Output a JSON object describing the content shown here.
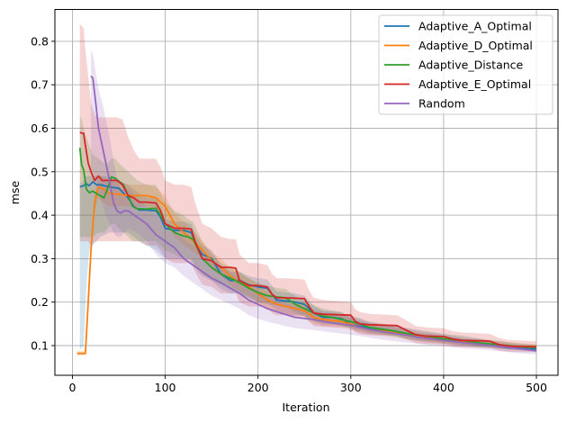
{
  "chart_data": {
    "type": "line",
    "title": "",
    "xlabel": "Iteration",
    "ylabel": "mse",
    "xlim": [
      -18,
      522
    ],
    "ylim": [
      0.032,
      0.884
    ],
    "xticks": [
      0,
      100,
      200,
      300,
      400,
      500
    ],
    "xtick_labels": [
      "0",
      "100",
      "200",
      "300",
      "400",
      "500"
    ],
    "yticks": [
      0.1,
      0.2,
      0.3,
      0.4,
      0.5,
      0.6,
      0.7,
      0.8
    ],
    "ytick_labels": [
      "0.1",
      "0.2",
      "0.3",
      "0.4",
      "0.5",
      "0.6",
      "0.7",
      "0.8"
    ],
    "grid": true,
    "legend_position": "upper right",
    "series": [
      {
        "name": "Adaptive_A_Optimal",
        "color": "#1f77b4",
        "x": [
          8,
          12,
          15,
          18,
          22,
          26,
          30,
          40,
          50,
          60,
          66,
          72,
          80,
          90,
          95,
          100,
          110,
          120,
          128,
          135,
          140,
          150,
          160,
          170,
          180,
          190,
          200,
          210,
          220,
          240,
          250,
          260,
          270,
          280,
          290,
          300,
          310,
          320,
          340,
          350,
          360,
          370,
          390,
          400,
          410,
          420,
          440,
          450,
          460,
          470,
          480,
          500
        ],
        "y": [
          0.465,
          0.468,
          0.472,
          0.468,
          0.477,
          0.47,
          0.47,
          0.465,
          0.462,
          0.44,
          0.42,
          0.412,
          0.412,
          0.41,
          0.395,
          0.37,
          0.365,
          0.365,
          0.36,
          0.325,
          0.31,
          0.3,
          0.265,
          0.25,
          0.25,
          0.24,
          0.235,
          0.232,
          0.205,
          0.2,
          0.195,
          0.175,
          0.165,
          0.165,
          0.162,
          0.15,
          0.145,
          0.14,
          0.135,
          0.132,
          0.128,
          0.12,
          0.118,
          0.115,
          0.112,
          0.108,
          0.104,
          0.102,
          0.098,
          0.095,
          0.094,
          0.092
        ],
        "band_lower": [
          0.09,
          0.1,
          0.24,
          0.32,
          0.33,
          0.34,
          0.35,
          0.36,
          0.36,
          0.36,
          0.35,
          0.34,
          0.33,
          0.32,
          0.31,
          0.3,
          0.3,
          0.3,
          0.3,
          0.27,
          0.26,
          0.25,
          0.23,
          0.22,
          0.22,
          0.21,
          0.2,
          0.2,
          0.18,
          0.17,
          0.17,
          0.155,
          0.148,
          0.148,
          0.146,
          0.138,
          0.133,
          0.128,
          0.124,
          0.122,
          0.118,
          0.112,
          0.11,
          0.107,
          0.104,
          0.1,
          0.097,
          0.096,
          0.093,
          0.09,
          0.089,
          0.087
        ],
        "band_upper": [
          0.47,
          0.48,
          0.49,
          0.49,
          0.49,
          0.49,
          0.49,
          0.49,
          0.48,
          0.47,
          0.46,
          0.45,
          0.44,
          0.44,
          0.42,
          0.39,
          0.385,
          0.385,
          0.38,
          0.345,
          0.33,
          0.32,
          0.285,
          0.27,
          0.27,
          0.26,
          0.255,
          0.252,
          0.225,
          0.22,
          0.215,
          0.192,
          0.18,
          0.18,
          0.178,
          0.163,
          0.157,
          0.152,
          0.146,
          0.142,
          0.138,
          0.128,
          0.126,
          0.123,
          0.12,
          0.116,
          0.111,
          0.108,
          0.103,
          0.1,
          0.099,
          0.097
        ]
      },
      {
        "name": "Adaptive_D_Optimal",
        "color": "#ff7f0e",
        "x": [
          5,
          8,
          10,
          14,
          17,
          20,
          24,
          28,
          32,
          40,
          50,
          60,
          70,
          80,
          90,
          100,
          110,
          120,
          128,
          140,
          150,
          160,
          170,
          180,
          190,
          200,
          210,
          220,
          240,
          250,
          260,
          270,
          290,
          300,
          310,
          320,
          340,
          360,
          380,
          400,
          420,
          440,
          460,
          480,
          500
        ],
        "y": [
          0.082,
          0.082,
          0.082,
          0.082,
          0.2,
          0.32,
          0.43,
          0.465,
          0.462,
          0.45,
          0.448,
          0.445,
          0.445,
          0.445,
          0.44,
          0.42,
          0.38,
          0.36,
          0.345,
          0.32,
          0.295,
          0.28,
          0.26,
          0.245,
          0.235,
          0.22,
          0.205,
          0.195,
          0.185,
          0.18,
          0.165,
          0.16,
          0.155,
          0.15,
          0.142,
          0.137,
          0.132,
          0.125,
          0.118,
          0.112,
          0.108,
          0.105,
          0.102,
          0.098,
          0.095
        ],
        "band_lower": [
          0.077,
          0.077,
          0.077,
          0.077,
          0.18,
          0.3,
          0.41,
          0.44,
          0.43,
          0.42,
          0.42,
          0.42,
          0.42,
          0.42,
          0.41,
          0.39,
          0.35,
          0.33,
          0.32,
          0.3,
          0.275,
          0.26,
          0.24,
          0.225,
          0.215,
          0.2,
          0.186,
          0.176,
          0.167,
          0.162,
          0.15,
          0.145,
          0.14,
          0.136,
          0.13,
          0.125,
          0.12,
          0.114,
          0.108,
          0.104,
          0.1,
          0.097,
          0.094,
          0.091,
          0.088
        ],
        "band_upper": [
          0.088,
          0.088,
          0.088,
          0.088,
          0.22,
          0.34,
          0.45,
          0.49,
          0.49,
          0.48,
          0.475,
          0.47,
          0.47,
          0.47,
          0.465,
          0.445,
          0.405,
          0.385,
          0.37,
          0.34,
          0.315,
          0.3,
          0.28,
          0.265,
          0.255,
          0.24,
          0.224,
          0.214,
          0.203,
          0.198,
          0.18,
          0.175,
          0.17,
          0.164,
          0.154,
          0.149,
          0.144,
          0.136,
          0.128,
          0.12,
          0.116,
          0.113,
          0.11,
          0.105,
          0.102
        ]
      },
      {
        "name": "Adaptive_Distance",
        "color": "#2ca02c",
        "x": [
          8,
          10,
          12,
          15,
          18,
          22,
          28,
          34,
          38,
          42,
          46,
          50,
          55,
          60,
          65,
          70,
          80,
          90,
          95,
          100,
          110,
          120,
          125,
          130,
          140,
          150,
          160,
          170,
          180,
          190,
          200,
          210,
          220,
          230,
          240,
          250,
          260,
          270,
          280,
          290,
          300,
          310,
          320,
          340,
          350,
          360,
          380,
          400,
          420,
          440,
          460,
          480,
          500
        ],
        "y": [
          0.555,
          0.515,
          0.505,
          0.46,
          0.452,
          0.455,
          0.447,
          0.44,
          0.462,
          0.488,
          0.485,
          0.478,
          0.47,
          0.445,
          0.42,
          0.415,
          0.414,
          0.416,
          0.4,
          0.38,
          0.36,
          0.352,
          0.35,
          0.345,
          0.3,
          0.28,
          0.265,
          0.255,
          0.245,
          0.232,
          0.222,
          0.215,
          0.212,
          0.21,
          0.195,
          0.185,
          0.175,
          0.168,
          0.165,
          0.16,
          0.155,
          0.15,
          0.142,
          0.136,
          0.132,
          0.128,
          0.122,
          0.116,
          0.112,
          0.106,
          0.102,
          0.098,
          0.095
        ],
        "band_lower": [
          0.35,
          0.35,
          0.35,
          0.35,
          0.35,
          0.35,
          0.36,
          0.36,
          0.37,
          0.38,
          0.38,
          0.37,
          0.36,
          0.35,
          0.34,
          0.34,
          0.34,
          0.34,
          0.33,
          0.32,
          0.31,
          0.3,
          0.3,
          0.29,
          0.265,
          0.25,
          0.24,
          0.23,
          0.22,
          0.21,
          0.2,
          0.195,
          0.192,
          0.19,
          0.176,
          0.167,
          0.157,
          0.152,
          0.15,
          0.145,
          0.141,
          0.137,
          0.13,
          0.124,
          0.12,
          0.116,
          0.11,
          0.105,
          0.101,
          0.096,
          0.093,
          0.09,
          0.088
        ],
        "band_upper": [
          0.63,
          0.62,
          0.6,
          0.58,
          0.56,
          0.54,
          0.53,
          0.52,
          0.52,
          0.53,
          0.53,
          0.52,
          0.51,
          0.5,
          0.49,
          0.48,
          0.47,
          0.47,
          0.45,
          0.43,
          0.41,
          0.4,
          0.39,
          0.385,
          0.34,
          0.31,
          0.29,
          0.28,
          0.27,
          0.255,
          0.245,
          0.237,
          0.233,
          0.23,
          0.214,
          0.203,
          0.193,
          0.185,
          0.18,
          0.175,
          0.169,
          0.163,
          0.154,
          0.148,
          0.144,
          0.14,
          0.134,
          0.127,
          0.123,
          0.116,
          0.111,
          0.106,
          0.102
        ]
      },
      {
        "name": "Adaptive_E_Optimal",
        "color": "#d62728",
        "x": [
          8,
          12,
          14,
          17,
          20,
          24,
          28,
          32,
          40,
          48,
          54,
          60,
          66,
          72,
          80,
          90,
          95,
          100,
          110,
          120,
          128,
          132,
          140,
          150,
          160,
          170,
          176,
          180,
          190,
          200,
          210,
          215,
          220,
          230,
          250,
          255,
          260,
          270,
          300,
          305,
          310,
          320,
          350,
          360,
          370,
          380,
          400,
          410,
          420,
          440,
          450,
          460,
          470,
          480,
          500
        ],
        "y": [
          0.59,
          0.588,
          0.56,
          0.52,
          0.5,
          0.48,
          0.49,
          0.48,
          0.48,
          0.48,
          0.47,
          0.445,
          0.44,
          0.43,
          0.43,
          0.428,
          0.41,
          0.38,
          0.37,
          0.37,
          0.368,
          0.34,
          0.3,
          0.295,
          0.28,
          0.28,
          0.278,
          0.25,
          0.238,
          0.238,
          0.235,
          0.218,
          0.21,
          0.21,
          0.208,
          0.19,
          0.175,
          0.172,
          0.17,
          0.155,
          0.15,
          0.148,
          0.146,
          0.135,
          0.125,
          0.122,
          0.121,
          0.115,
          0.112,
          0.111,
          0.11,
          0.102,
          0.099,
          0.098,
          0.097
        ],
        "band_lower": [
          0.34,
          0.34,
          0.34,
          0.34,
          0.33,
          0.34,
          0.34,
          0.34,
          0.34,
          0.34,
          0.34,
          0.34,
          0.34,
          0.34,
          0.33,
          0.33,
          0.32,
          0.3,
          0.29,
          0.29,
          0.29,
          0.27,
          0.24,
          0.235,
          0.22,
          0.22,
          0.22,
          0.2,
          0.19,
          0.19,
          0.188,
          0.175,
          0.17,
          0.17,
          0.168,
          0.155,
          0.145,
          0.143,
          0.142,
          0.13,
          0.126,
          0.124,
          0.123,
          0.114,
          0.106,
          0.104,
          0.103,
          0.098,
          0.096,
          0.095,
          0.094,
          0.088,
          0.086,
          0.085,
          0.085
        ],
        "band_upper": [
          0.84,
          0.83,
          0.78,
          0.72,
          0.66,
          0.63,
          0.625,
          0.625,
          0.625,
          0.625,
          0.62,
          0.58,
          0.55,
          0.53,
          0.53,
          0.53,
          0.51,
          0.48,
          0.47,
          0.47,
          0.465,
          0.43,
          0.38,
          0.37,
          0.35,
          0.345,
          0.345,
          0.31,
          0.29,
          0.29,
          0.285,
          0.265,
          0.255,
          0.255,
          0.252,
          0.228,
          0.21,
          0.205,
          0.2,
          0.183,
          0.177,
          0.173,
          0.17,
          0.158,
          0.145,
          0.142,
          0.14,
          0.133,
          0.13,
          0.128,
          0.127,
          0.117,
          0.113,
          0.112,
          0.11
        ]
      },
      {
        "name": "Random",
        "color": "#9467bd",
        "x": [
          20,
          22,
          25,
          28,
          32,
          36,
          40,
          44,
          48,
          52,
          56,
          60,
          70,
          80,
          90,
          100,
          110,
          120,
          130,
          140,
          150,
          160,
          170,
          180,
          190,
          200,
          210,
          220,
          240,
          260,
          280,
          300,
          320,
          340,
          360,
          380,
          400,
          420,
          440,
          460,
          480,
          500
        ],
        "y": [
          0.72,
          0.715,
          0.66,
          0.6,
          0.56,
          0.52,
          0.48,
          0.43,
          0.41,
          0.405,
          0.41,
          0.41,
          0.395,
          0.38,
          0.355,
          0.34,
          0.325,
          0.3,
          0.285,
          0.27,
          0.255,
          0.245,
          0.232,
          0.22,
          0.205,
          0.195,
          0.185,
          0.178,
          0.165,
          0.16,
          0.152,
          0.147,
          0.137,
          0.13,
          0.124,
          0.117,
          0.112,
          0.107,
          0.103,
          0.098,
          0.093,
          0.088
        ],
        "band_lower": [
          0.5,
          0.5,
          0.48,
          0.45,
          0.43,
          0.4,
          0.38,
          0.36,
          0.35,
          0.35,
          0.36,
          0.37,
          0.36,
          0.34,
          0.31,
          0.29,
          0.28,
          0.26,
          0.245,
          0.23,
          0.215,
          0.205,
          0.195,
          0.185,
          0.17,
          0.162,
          0.155,
          0.15,
          0.14,
          0.136,
          0.13,
          0.125,
          0.118,
          0.112,
          0.107,
          0.102,
          0.098,
          0.094,
          0.091,
          0.087,
          0.083,
          0.08
        ],
        "band_upper": [
          0.78,
          0.77,
          0.73,
          0.69,
          0.66,
          0.62,
          0.58,
          0.53,
          0.48,
          0.46,
          0.46,
          0.46,
          0.44,
          0.42,
          0.4,
          0.385,
          0.37,
          0.345,
          0.33,
          0.31,
          0.295,
          0.285,
          0.27,
          0.255,
          0.24,
          0.228,
          0.215,
          0.206,
          0.19,
          0.184,
          0.175,
          0.168,
          0.156,
          0.148,
          0.141,
          0.132,
          0.127,
          0.12,
          0.115,
          0.109,
          0.103,
          0.097
        ]
      }
    ]
  }
}
